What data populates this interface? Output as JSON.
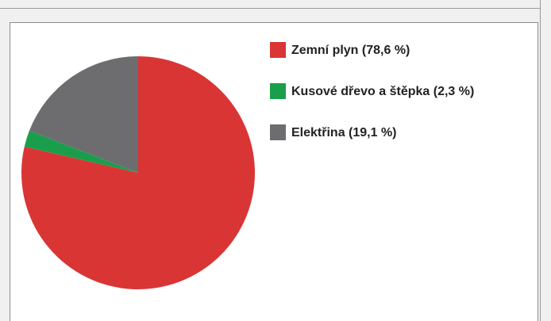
{
  "chart_data": {
    "type": "pie",
    "categories": [
      "Zemní plyn (78,6 %)",
      "Kusové dřevo a štěpka (2,3 %)",
      "Elektřina (19,1 %)"
    ],
    "values": [
      78.6,
      2.3,
      19.1
    ],
    "colors": [
      "#d93535",
      "#1b9e4b",
      "#6d6d6f"
    ],
    "legend": "right"
  }
}
